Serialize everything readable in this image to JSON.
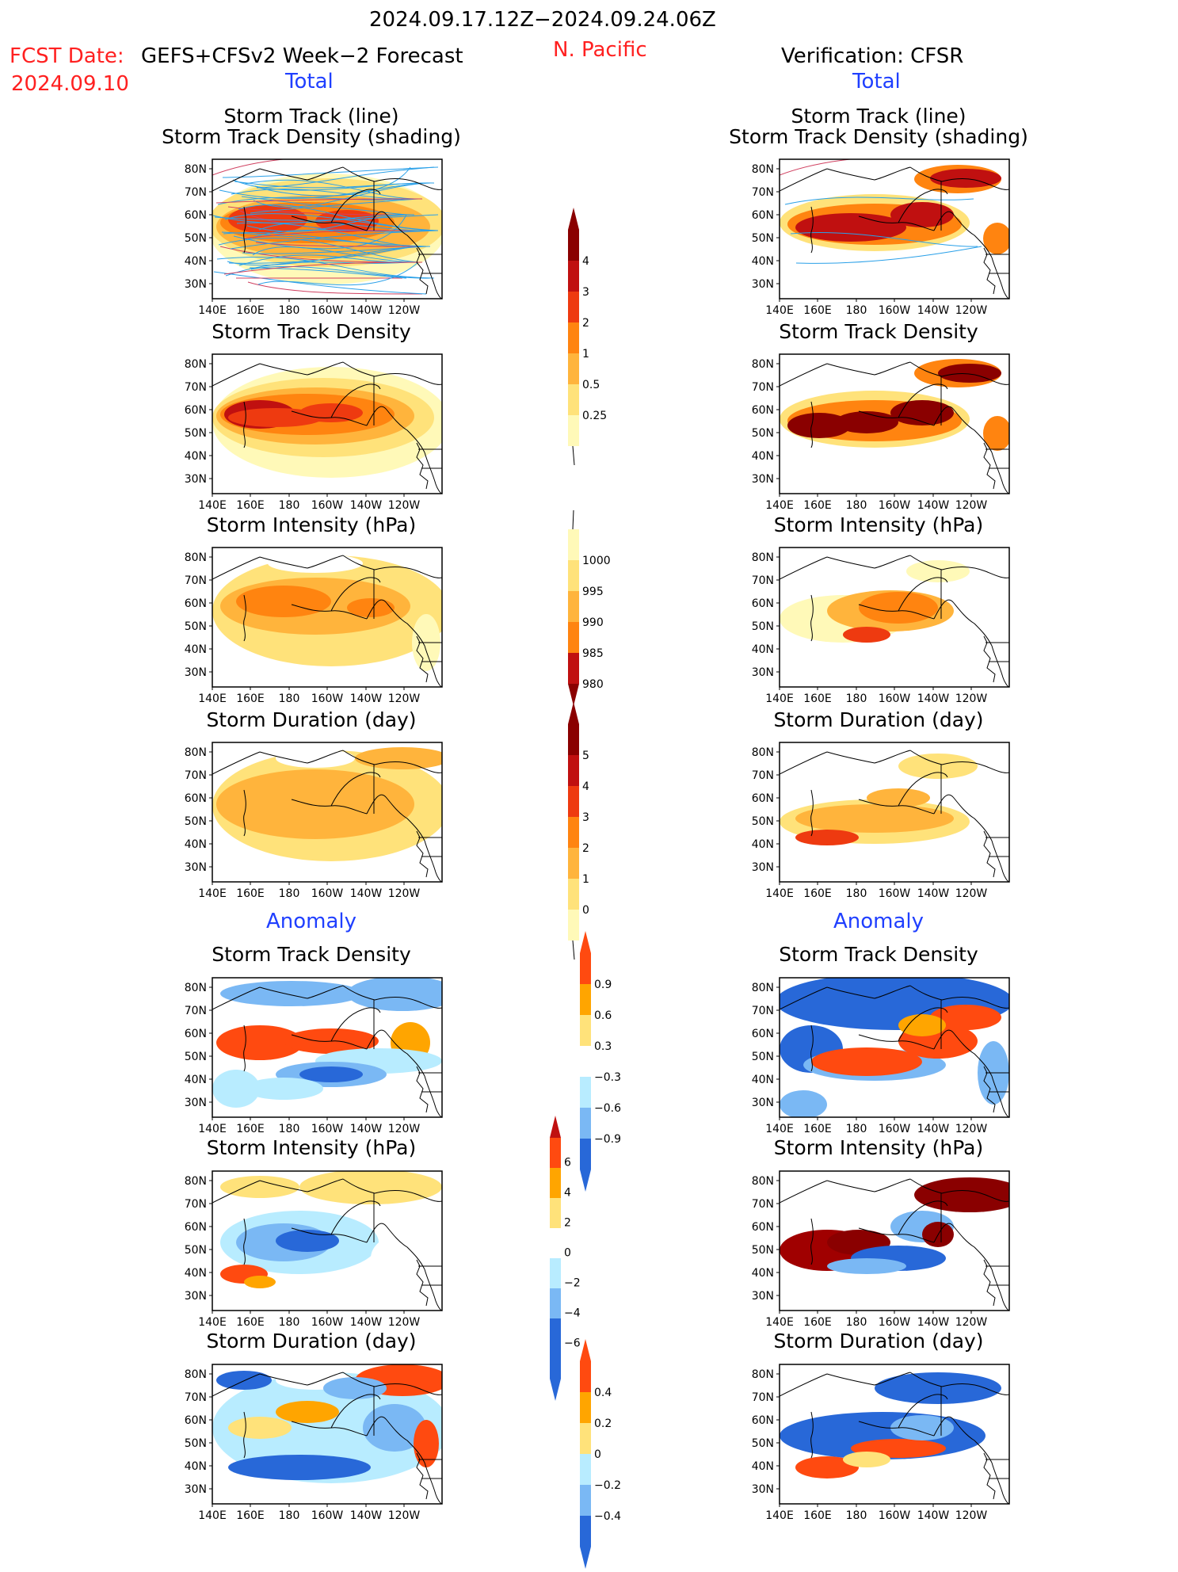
{
  "header": {
    "date_range": "2024.09.17.12Z−2024.09.24.06Z",
    "fcst_label": "FCST Date:",
    "fcst_model": "GEFS+CFSv2 Week−2 Forecast",
    "fcst_date": "2024.09.10",
    "region": "N. Pacific",
    "verification": "Verification: CFSR"
  },
  "sections": {
    "total_left": "Total",
    "total_right": "Total",
    "anomaly_left": "Anomaly",
    "anomaly_right": "Anomaly"
  },
  "panel_titles": {
    "track_line": "Storm Track (line)",
    "track_density_shading": "Storm Track Density (shading)",
    "track_density": "Storm Track Density",
    "intensity": "Storm Intensity (hPa)",
    "duration": "Storm Duration (day)"
  },
  "map_axes": {
    "lat_labels": [
      "80N",
      "70N",
      "60N",
      "50N",
      "40N",
      "30N"
    ],
    "lon_labels": [
      "140E",
      "160E",
      "180",
      "160W",
      "140W",
      "120W"
    ]
  },
  "colorbars": {
    "density_total": [
      "4",
      "3",
      "2",
      "1",
      "0.5",
      "0.25"
    ],
    "intensity_total": [
      "1000",
      "995",
      "990",
      "985",
      "980"
    ],
    "duration_total": [
      "5",
      "4",
      "3",
      "2",
      "1",
      "0"
    ],
    "density_anom": [
      "0.9",
      "0.6",
      "0.3",
      "−0.3",
      "−0.6",
      "−0.9"
    ],
    "intensity_anom": [
      "6",
      "4",
      "2",
      "0",
      "−2",
      "−4",
      "−6"
    ],
    "duration_anom": [
      "0.4",
      "0.2",
      "0",
      "−0.2",
      "−0.4"
    ]
  },
  "colors": {
    "total_scale": [
      "#fff9b8",
      "#ffe27a",
      "#ffb43c",
      "#ff8410",
      "#ee3a10",
      "#c01010",
      "#8a0000"
    ],
    "anom_pos": [
      "#ffe27a",
      "#ffa500",
      "#ff4a10"
    ],
    "anom_neg": [
      "#b8ecff",
      "#7ab8f4",
      "#2868d8"
    ]
  }
}
